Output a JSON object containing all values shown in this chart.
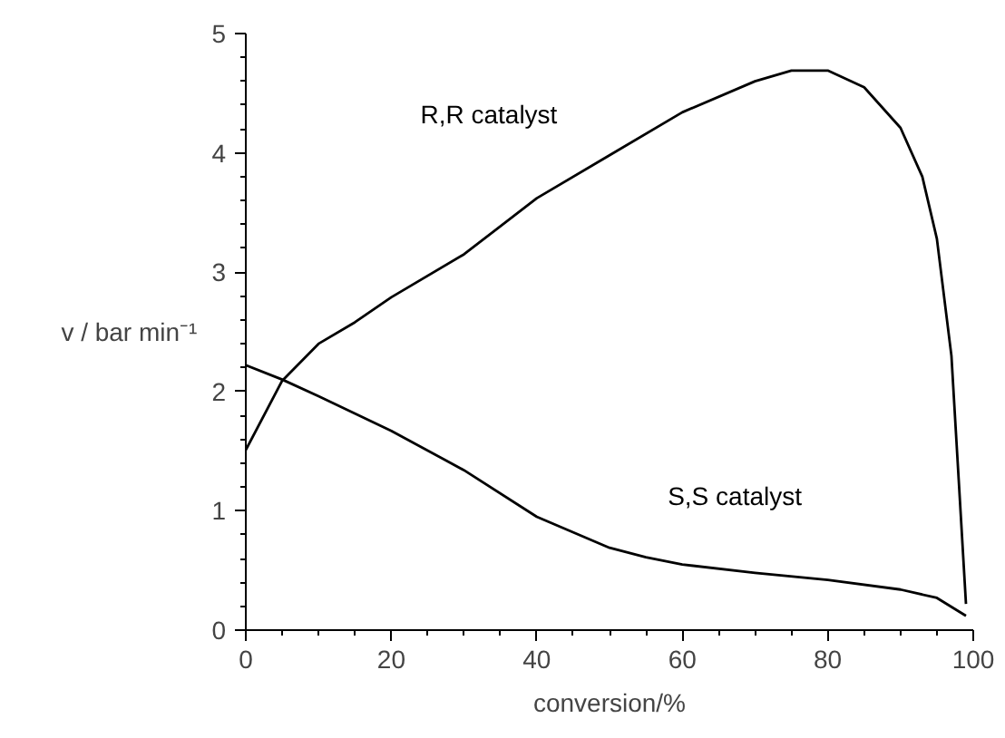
{
  "chart_data": {
    "type": "line",
    "xlabel": "conversion/%",
    "ylabel": "v / bar min⁻¹",
    "xlim": [
      0,
      100
    ],
    "ylim": [
      0,
      5
    ],
    "xticks": [
      0,
      20,
      40,
      60,
      80,
      100
    ],
    "yticks": [
      0,
      1,
      2,
      3,
      4,
      5
    ],
    "grid": false,
    "marker": "none",
    "line_style": "solid",
    "series": [
      {
        "name": "R,R catalyst",
        "color": "#000000",
        "x": [
          0,
          5,
          10,
          15,
          20,
          30,
          40,
          50,
          60,
          70,
          75,
          80,
          85,
          90,
          93,
          95,
          97,
          98,
          99
        ],
        "values": [
          1.51,
          2.09,
          2.4,
          2.58,
          2.79,
          3.15,
          3.62,
          3.98,
          4.34,
          4.6,
          4.69,
          4.69,
          4.55,
          4.21,
          3.8,
          3.28,
          2.3,
          1.26,
          0.22
        ]
      },
      {
        "name": "S,S catalyst",
        "color": "#000000",
        "x": [
          0,
          5,
          10,
          20,
          30,
          40,
          50,
          55,
          60,
          70,
          80,
          90,
          95,
          99
        ],
        "values": [
          2.22,
          2.1,
          1.96,
          1.67,
          1.34,
          0.95,
          0.69,
          0.61,
          0.55,
          0.48,
          0.42,
          0.34,
          0.27,
          0.12
        ]
      }
    ]
  }
}
